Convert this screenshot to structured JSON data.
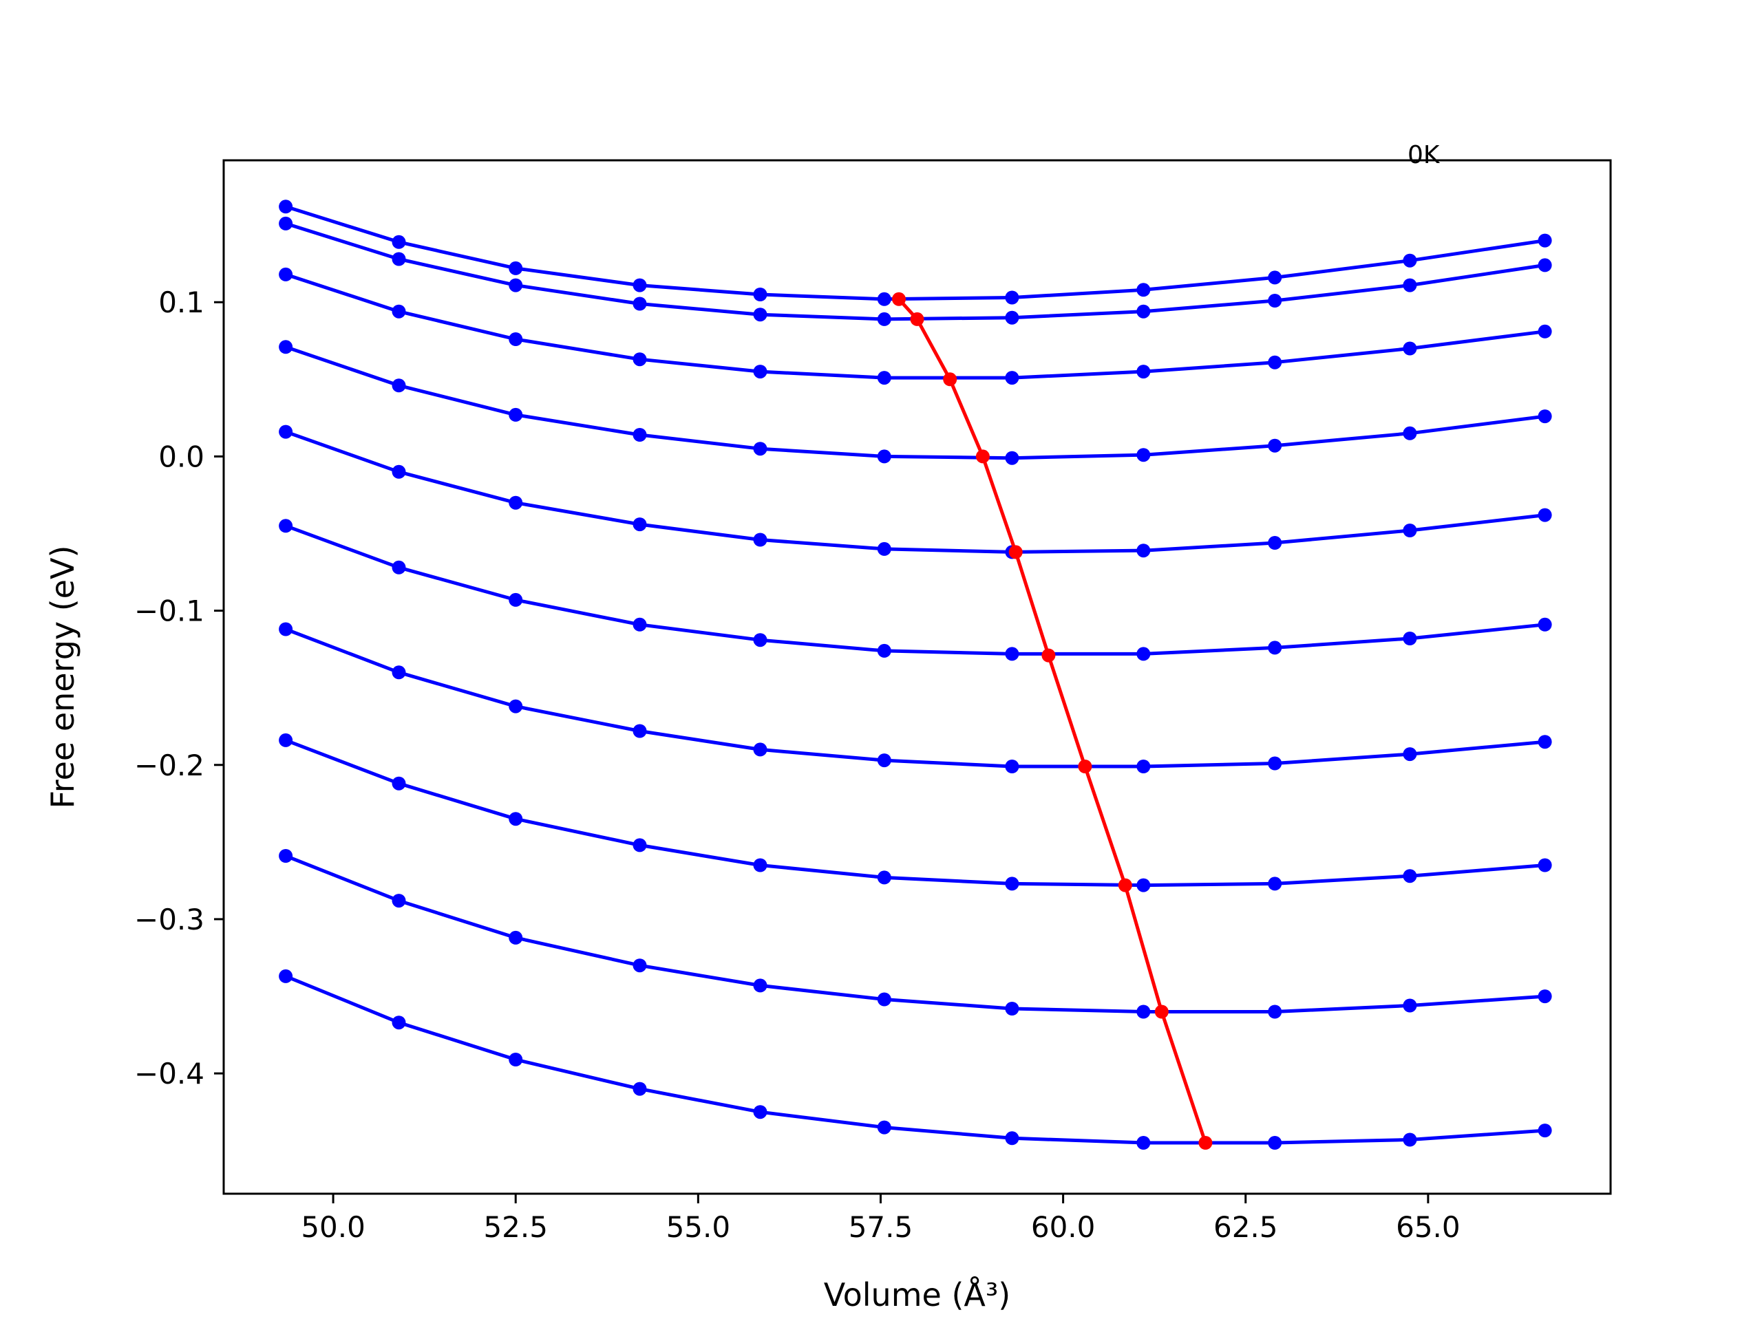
{
  "chart_data": {
    "type": "line",
    "title": "",
    "xlabel": "Volume (Å³)",
    "ylabel": "Free energy (eV)",
    "annotation": "0K",
    "xlim": [
      48.5,
      67.5
    ],
    "ylim": [
      -0.478,
      0.192
    ],
    "xticks": [
      50.0,
      52.5,
      55.0,
      57.5,
      60.0,
      62.5,
      65.0
    ],
    "yticks": [
      0.1,
      0.0,
      -0.1,
      -0.2,
      -0.3,
      -0.4
    ],
    "xtick_labels": [
      "50.0",
      "52.5",
      "55.0",
      "57.5",
      "60.0",
      "62.5",
      "65.0"
    ],
    "ytick_labels": [
      "0.1",
      "0.0",
      "−0.1",
      "−0.2",
      "−0.3",
      "−0.4"
    ],
    "grid": false,
    "x": [
      49.35,
      50.9,
      52.5,
      54.2,
      55.85,
      57.55,
      59.3,
      61.1,
      62.9,
      64.75,
      66.6
    ],
    "series": [
      {
        "color": "#0000ff",
        "values": [
          0.162,
          0.139,
          0.122,
          0.111,
          0.105,
          0.102,
          0.103,
          0.108,
          0.116,
          0.127,
          0.14
        ]
      },
      {
        "color": "#0000ff",
        "values": [
          0.151,
          0.128,
          0.111,
          0.099,
          0.092,
          0.089,
          0.09,
          0.094,
          0.101,
          0.111,
          0.124
        ]
      },
      {
        "color": "#0000ff",
        "values": [
          0.118,
          0.094,
          0.076,
          0.063,
          0.055,
          0.051,
          0.051,
          0.055,
          0.061,
          0.07,
          0.081
        ]
      },
      {
        "color": "#0000ff",
        "values": [
          0.071,
          0.046,
          0.027,
          0.014,
          0.005,
          0.0,
          -0.001,
          0.001,
          0.007,
          0.015,
          0.026
        ]
      },
      {
        "color": "#0000ff",
        "values": [
          0.016,
          -0.01,
          -0.03,
          -0.044,
          -0.054,
          -0.06,
          -0.062,
          -0.061,
          -0.056,
          -0.048,
          -0.038
        ]
      },
      {
        "color": "#0000ff",
        "values": [
          -0.045,
          -0.072,
          -0.093,
          -0.109,
          -0.119,
          -0.126,
          -0.128,
          -0.128,
          -0.124,
          -0.118,
          -0.109
        ]
      },
      {
        "color": "#0000ff",
        "values": [
          -0.112,
          -0.14,
          -0.162,
          -0.178,
          -0.19,
          -0.197,
          -0.201,
          -0.201,
          -0.199,
          -0.193,
          -0.185
        ]
      },
      {
        "color": "#0000ff",
        "values": [
          -0.184,
          -0.212,
          -0.235,
          -0.252,
          -0.265,
          -0.273,
          -0.277,
          -0.278,
          -0.277,
          -0.272,
          -0.265
        ]
      },
      {
        "color": "#0000ff",
        "values": [
          -0.259,
          -0.288,
          -0.312,
          -0.33,
          -0.343,
          -0.352,
          -0.358,
          -0.36,
          -0.36,
          -0.356,
          -0.35
        ]
      },
      {
        "color": "#0000ff",
        "values": [
          -0.337,
          -0.367,
          -0.391,
          -0.41,
          -0.425,
          -0.435,
          -0.442,
          -0.445,
          -0.445,
          -0.443,
          -0.437
        ]
      }
    ],
    "minimum_line": {
      "color": "#ff0000",
      "x": [
        57.75,
        58.0,
        58.45,
        58.9,
        59.35,
        59.8,
        60.3,
        60.85,
        61.35,
        61.95
      ],
      "y": [
        0.102,
        0.089,
        0.05,
        0.0,
        -0.062,
        -0.129,
        -0.201,
        -0.278,
        -0.36,
        -0.445
      ]
    }
  }
}
